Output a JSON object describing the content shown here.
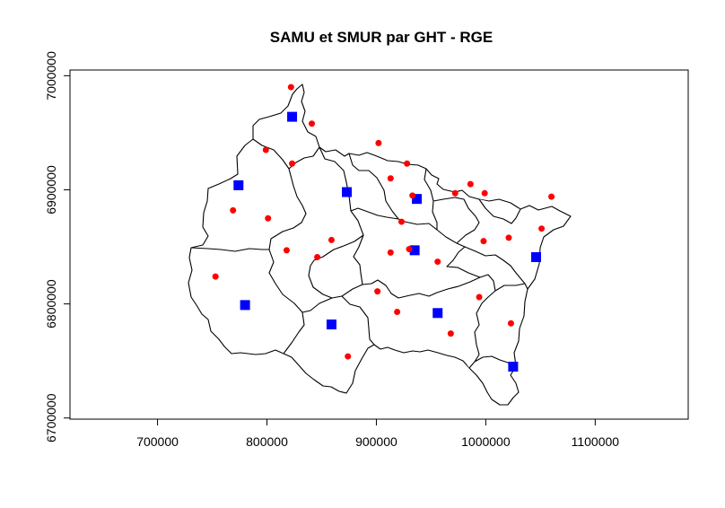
{
  "chart_data": {
    "type": "scatter",
    "title": "SAMU et SMUR par GHT - RGE",
    "xlim": [
      620000,
      1185000
    ],
    "ylim": [
      6699000,
      7005000
    ],
    "x_ticks": [
      700000,
      800000,
      900000,
      1000000,
      1100000
    ],
    "y_ticks": [
      6700000,
      6800000,
      6900000,
      7000000
    ],
    "x_tick_labels": [
      "700000",
      "800000",
      "900000",
      "1000000",
      "1100000"
    ],
    "y_tick_labels": [
      "6700000",
      "6800000",
      "6900000",
      "7000000"
    ],
    "series": [
      {
        "marker": "square",
        "color": "#0000ff",
        "points": [
          {
            "x": 823000,
            "y": 6964000
          },
          {
            "x": 774000,
            "y": 6904000
          },
          {
            "x": 873000,
            "y": 6898000
          },
          {
            "x": 937000,
            "y": 6892000
          },
          {
            "x": 935000,
            "y": 6847000
          },
          {
            "x": 1046000,
            "y": 6841000
          },
          {
            "x": 780000,
            "y": 6799000
          },
          {
            "x": 956000,
            "y": 6792000
          },
          {
            "x": 859000,
            "y": 6782000
          },
          {
            "x": 1025000,
            "y": 6745000
          }
        ]
      },
      {
        "marker": "circle",
        "color": "#ff0000",
        "points": [
          {
            "x": 822000,
            "y": 6990000
          },
          {
            "x": 841000,
            "y": 6958000
          },
          {
            "x": 799000,
            "y": 6935000
          },
          {
            "x": 823000,
            "y": 6923000
          },
          {
            "x": 902000,
            "y": 6941000
          },
          {
            "x": 928000,
            "y": 6923000
          },
          {
            "x": 913000,
            "y": 6910000
          },
          {
            "x": 986000,
            "y": 6905000
          },
          {
            "x": 933000,
            "y": 6895000
          },
          {
            "x": 972000,
            "y": 6897000
          },
          {
            "x": 999000,
            "y": 6897000
          },
          {
            "x": 1060000,
            "y": 6894000
          },
          {
            "x": 769000,
            "y": 6882000
          },
          {
            "x": 801000,
            "y": 6875000
          },
          {
            "x": 923000,
            "y": 6872000
          },
          {
            "x": 1051000,
            "y": 6866000
          },
          {
            "x": 1021000,
            "y": 6858000
          },
          {
            "x": 998000,
            "y": 6855000
          },
          {
            "x": 859000,
            "y": 6856000
          },
          {
            "x": 818000,
            "y": 6847000
          },
          {
            "x": 930000,
            "y": 6848000
          },
          {
            "x": 913000,
            "y": 6845000
          },
          {
            "x": 846000,
            "y": 6841000
          },
          {
            "x": 956000,
            "y": 6837000
          },
          {
            "x": 753000,
            "y": 6824000
          },
          {
            "x": 901000,
            "y": 6811000
          },
          {
            "x": 994000,
            "y": 6806000
          },
          {
            "x": 919000,
            "y": 6793000
          },
          {
            "x": 1023000,
            "y": 6783000
          },
          {
            "x": 968000,
            "y": 6774000
          },
          {
            "x": 874000,
            "y": 6754000
          }
        ]
      }
    ]
  }
}
